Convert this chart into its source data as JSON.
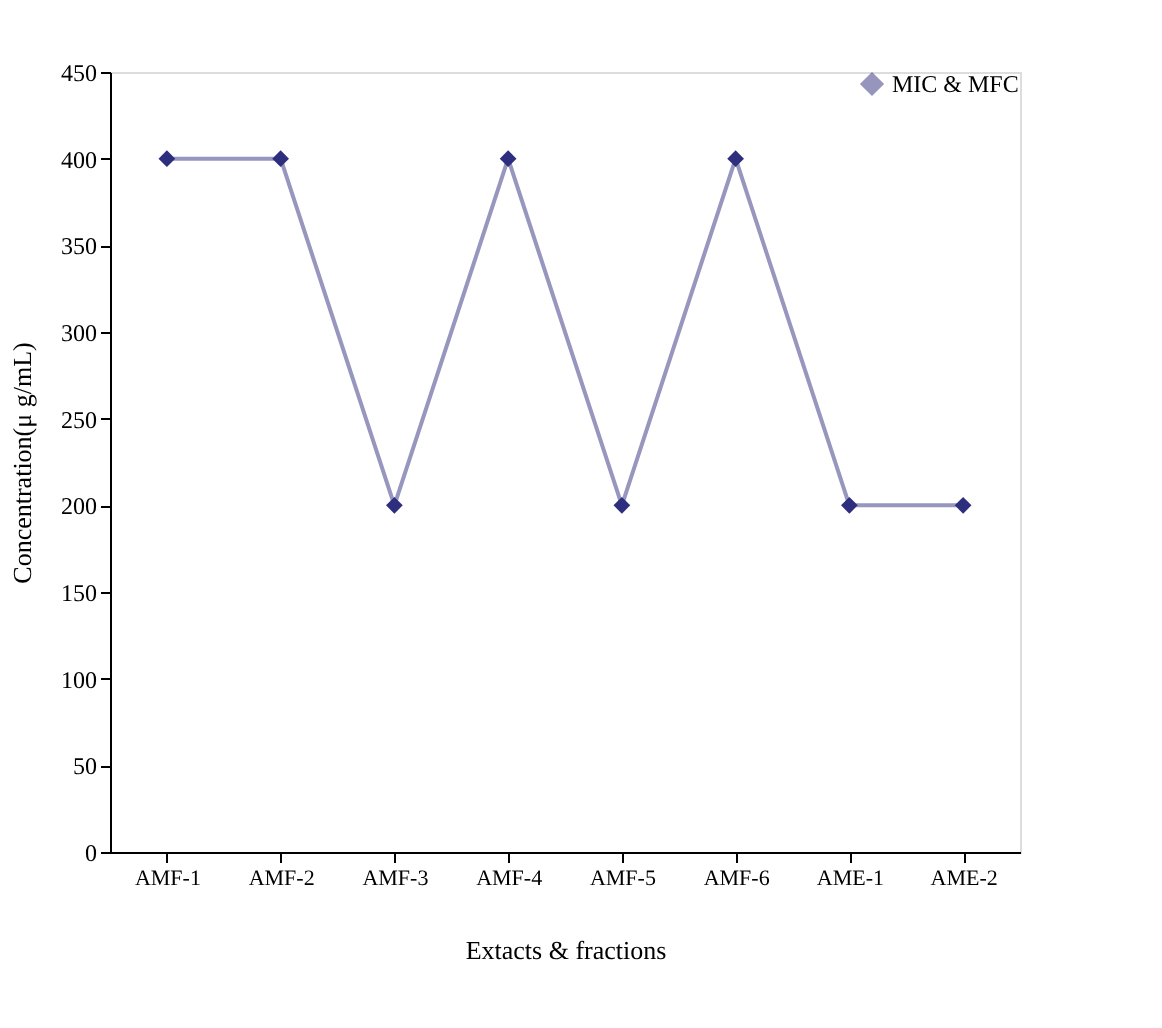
{
  "chart_data": {
    "type": "line",
    "xlabel": "Extacts & fractions",
    "ylabel": "Concentration(μ g/mL)",
    "categories": [
      "AMF-1",
      "AMF-2",
      "AMF-3",
      "AMF-4",
      "AMF-5",
      "AMF-6",
      "AME-1",
      "AME-2"
    ],
    "series": [
      {
        "name": "MIC & MFC",
        "color": "#2e2e7e",
        "values": [
          400,
          400,
          200,
          400,
          200,
          400,
          200,
          200
        ]
      }
    ],
    "ylim": [
      0,
      450
    ],
    "yticks": [
      0,
      50,
      100,
      150,
      200,
      250,
      300,
      350,
      400,
      450
    ],
    "grid": false,
    "legend": "top right",
    "marker": "diamond",
    "line_style": "solid"
  }
}
